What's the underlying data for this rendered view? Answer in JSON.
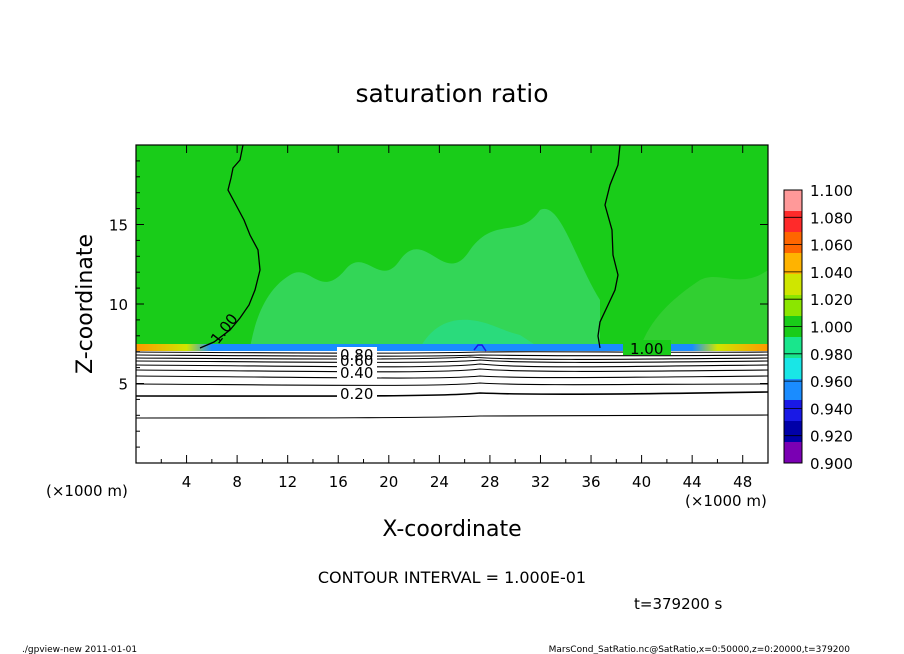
{
  "chart_data": {
    "type": "heatmap",
    "title": "saturation ratio",
    "xlabel": "X-coordinate",
    "ylabel": "Z-coordinate",
    "x_unit_left": "(×1000 m)",
    "x_unit_right": "(×1000 m)",
    "xlim": [
      0,
      50
    ],
    "ylim": [
      0,
      20
    ],
    "x_ticks": [
      4,
      8,
      12,
      16,
      20,
      24,
      28,
      32,
      36,
      40,
      44,
      48
    ],
    "y_ticks": [
      5,
      10,
      15
    ],
    "colorbar": {
      "levels": [
        "1.100",
        "1.080",
        "1.060",
        "1.040",
        "1.020",
        "1.000",
        "0.980",
        "0.960",
        "0.940",
        "0.920",
        "0.900"
      ],
      "colors": [
        "#ff9999",
        "#ff2a2a",
        "#ff6600",
        "#ffb300",
        "#cfe600",
        "#8be600",
        "#19cc19",
        "#19e68c",
        "#19e6e6",
        "#1a8cff",
        "#1919e6",
        "#0000a8",
        "#7a00b3"
      ]
    },
    "contour_labels": [
      {
        "text": "1.00",
        "x": 39.0,
        "z": 7.2
      },
      {
        "text": "1.00",
        "x": 7.5,
        "z": 8.5
      },
      {
        "text": "0.80",
        "x": 17.5,
        "z": 6.8
      },
      {
        "text": "0.60",
        "x": 17.5,
        "z": 6.4
      },
      {
        "text": "0.40",
        "x": 17.5,
        "z": 5.7
      },
      {
        "text": "0.20",
        "x": 17.5,
        "z": 4.5
      }
    ],
    "contour_interval": "CONTOUR INTERVAL = 1.000E-01",
    "time": "t=379200 s"
  },
  "footer": {
    "left": "./gpview-new  2011-01-01",
    "right": "MarsCond_SatRatio.nc@SatRatio,x=0:50000,z=0:20000,t=379200"
  }
}
